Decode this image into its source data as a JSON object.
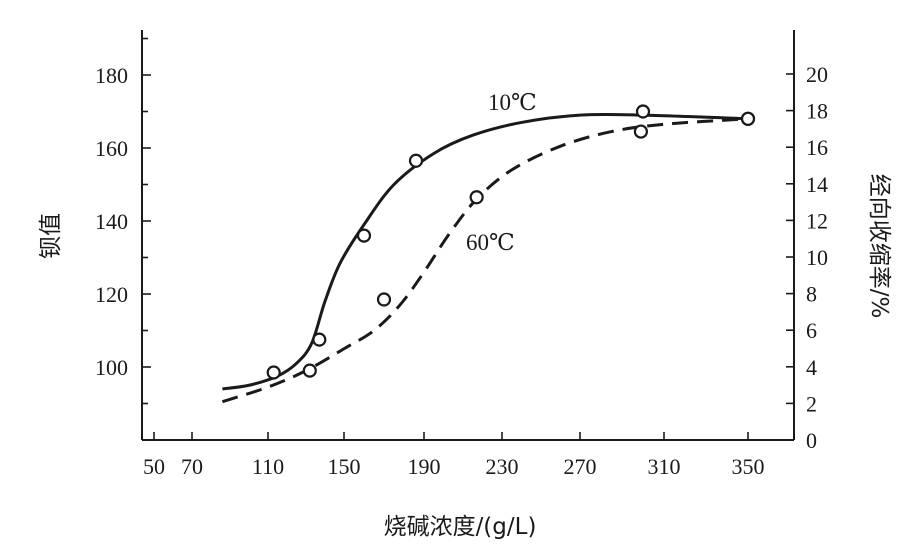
{
  "chart_data": {
    "type": "line",
    "xlabel": "烧碱浓度/(g/L)",
    "ylabel": "钡值",
    "y2label": "经向收缩率/%",
    "x_ticks": [
      50,
      70,
      110,
      150,
      190,
      230,
      270,
      310,
      350
    ],
    "x_tick_labels": [
      "50",
      "70",
      "110",
      "150",
      "190",
      "230",
      "270",
      "310",
      "350"
    ],
    "y_ticks": [
      100,
      120,
      140,
      160,
      180
    ],
    "y_tick_labels": [
      "100",
      "120",
      "140",
      "160",
      "180"
    ],
    "y2_ticks": [
      0,
      2,
      4,
      6,
      8,
      10,
      12,
      14,
      16,
      18,
      20
    ],
    "y2_tick_labels": [
      "0",
      "2",
      "4",
      "6",
      "8",
      "10",
      "12",
      "14",
      "16",
      "18",
      "20"
    ],
    "series": [
      {
        "name": "10℃",
        "style": "solid",
        "curve": [
          {
            "x": 86,
            "y": 94.0
          },
          {
            "x": 100,
            "y": 95.0
          },
          {
            "x": 115,
            "y": 97.5
          },
          {
            "x": 125,
            "y": 101.0
          },
          {
            "x": 133,
            "y": 106.5
          },
          {
            "x": 140,
            "y": 118.0
          },
          {
            "x": 148,
            "y": 128.5
          },
          {
            "x": 160,
            "y": 139.0
          },
          {
            "x": 175,
            "y": 150.0
          },
          {
            "x": 195,
            "y": 158.5
          },
          {
            "x": 215,
            "y": 163.5
          },
          {
            "x": 240,
            "y": 167.0
          },
          {
            "x": 270,
            "y": 169.0
          },
          {
            "x": 300,
            "y": 169.0
          },
          {
            "x": 350,
            "y": 168.0
          }
        ],
        "points": [
          {
            "x": 113,
            "y": 98.5
          },
          {
            "x": 137,
            "y": 107.5
          },
          {
            "x": 160,
            "y": 136.0
          },
          {
            "x": 186,
            "y": 156.5
          },
          {
            "x": 300,
            "y": 170.0
          },
          {
            "x": 350,
            "y": 168.0
          }
        ]
      },
      {
        "name": "60℃",
        "style": "dashed",
        "curve": [
          {
            "x": 86,
            "y": 90.5
          },
          {
            "x": 110,
            "y": 94.5
          },
          {
            "x": 130,
            "y": 99.0
          },
          {
            "x": 150,
            "y": 105.0
          },
          {
            "x": 165,
            "y": 110.0
          },
          {
            "x": 178,
            "y": 117.0
          },
          {
            "x": 190,
            "y": 126.0
          },
          {
            "x": 203,
            "y": 136.5
          },
          {
            "x": 217,
            "y": 146.0
          },
          {
            "x": 235,
            "y": 154.0
          },
          {
            "x": 260,
            "y": 160.5
          },
          {
            "x": 285,
            "y": 164.5
          },
          {
            "x": 310,
            "y": 166.5
          },
          {
            "x": 350,
            "y": 168.0
          }
        ],
        "points": [
          {
            "x": 132,
            "y": 99.0
          },
          {
            "x": 170,
            "y": 118.5
          },
          {
            "x": 217,
            "y": 146.5
          },
          {
            "x": 299,
            "y": 164.5
          },
          {
            "x": 350,
            "y": 168.0
          }
        ]
      }
    ],
    "grid": false,
    "legend": "inline labels near curves"
  }
}
